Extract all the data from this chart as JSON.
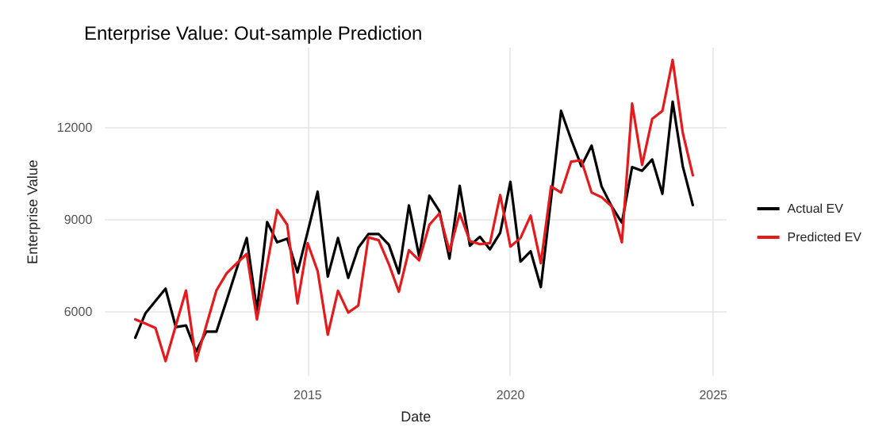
{
  "chart_data": {
    "type": "line",
    "title": "Enterprise Value: Out-sample Prediction",
    "xlabel": "Date",
    "ylabel": "Enterprise Value",
    "x": [
      "2010-10",
      "2011-01",
      "2011-04",
      "2011-07",
      "2011-10",
      "2012-01",
      "2012-04",
      "2012-07",
      "2012-10",
      "2013-01",
      "2013-04",
      "2013-07",
      "2013-10",
      "2014-01",
      "2014-04",
      "2014-07",
      "2014-10",
      "2015-01",
      "2015-04",
      "2015-07",
      "2015-10",
      "2016-01",
      "2016-04",
      "2016-07",
      "2016-10",
      "2017-01",
      "2017-04",
      "2017-07",
      "2017-10",
      "2018-01",
      "2018-04",
      "2018-07",
      "2018-10",
      "2019-01",
      "2019-04",
      "2019-07",
      "2019-10",
      "2020-01",
      "2020-04",
      "2020-07",
      "2020-10",
      "2021-01",
      "2021-04",
      "2021-07",
      "2021-10",
      "2022-01",
      "2022-04",
      "2022-07",
      "2022-10",
      "2023-01",
      "2023-04",
      "2023-07",
      "2023-10",
      "2024-01",
      "2024-04",
      "2024-07"
    ],
    "series": [
      {
        "name": "Actual EV",
        "color": "#000000",
        "values": [
          5150,
          5950,
          6350,
          6750,
          5500,
          5550,
          4700,
          5350,
          5350,
          6370,
          7390,
          8400,
          6040,
          8920,
          8260,
          8380,
          7280,
          8600,
          9910,
          7140,
          8400,
          7100,
          8080,
          8530,
          8530,
          8180,
          7250,
          9460,
          7800,
          9780,
          9280,
          7730,
          10100,
          8150,
          8440,
          8030,
          8570,
          10230,
          7630,
          7970,
          6800,
          9670,
          12540,
          11610,
          10740,
          11410,
          10080,
          9430,
          8900,
          10710,
          10590,
          10960,
          9840,
          12840,
          10740,
          9470
        ]
      },
      {
        "name": "Predicted EV",
        "color": "#e41a1c",
        "values": [
          5750,
          5610,
          5470,
          4390,
          5540,
          6690,
          4390,
          5540,
          6690,
          7250,
          7570,
          7880,
          5750,
          7530,
          9310,
          8830,
          6270,
          8230,
          7320,
          5250,
          6680,
          5970,
          6200,
          8420,
          8330,
          7550,
          6650,
          8000,
          7670,
          8830,
          9200,
          7970,
          9200,
          8300,
          8200,
          8230,
          9800,
          8120,
          8400,
          9130,
          7580,
          10080,
          9880,
          10890,
          10930,
          9880,
          9730,
          9430,
          8260,
          12780,
          10780,
          12280,
          12540,
          14200,
          11830,
          10440
        ]
      }
    ],
    "xlim": [
      "2010-01",
      "2025-05"
    ],
    "xticks": [
      "2015",
      "2020",
      "2025"
    ],
    "ylim": [
      3900,
      14600
    ],
    "yticks": [
      6000,
      9000,
      12000
    ],
    "grid": true,
    "legend": "right",
    "marker": "none",
    "line_style": "solid"
  }
}
